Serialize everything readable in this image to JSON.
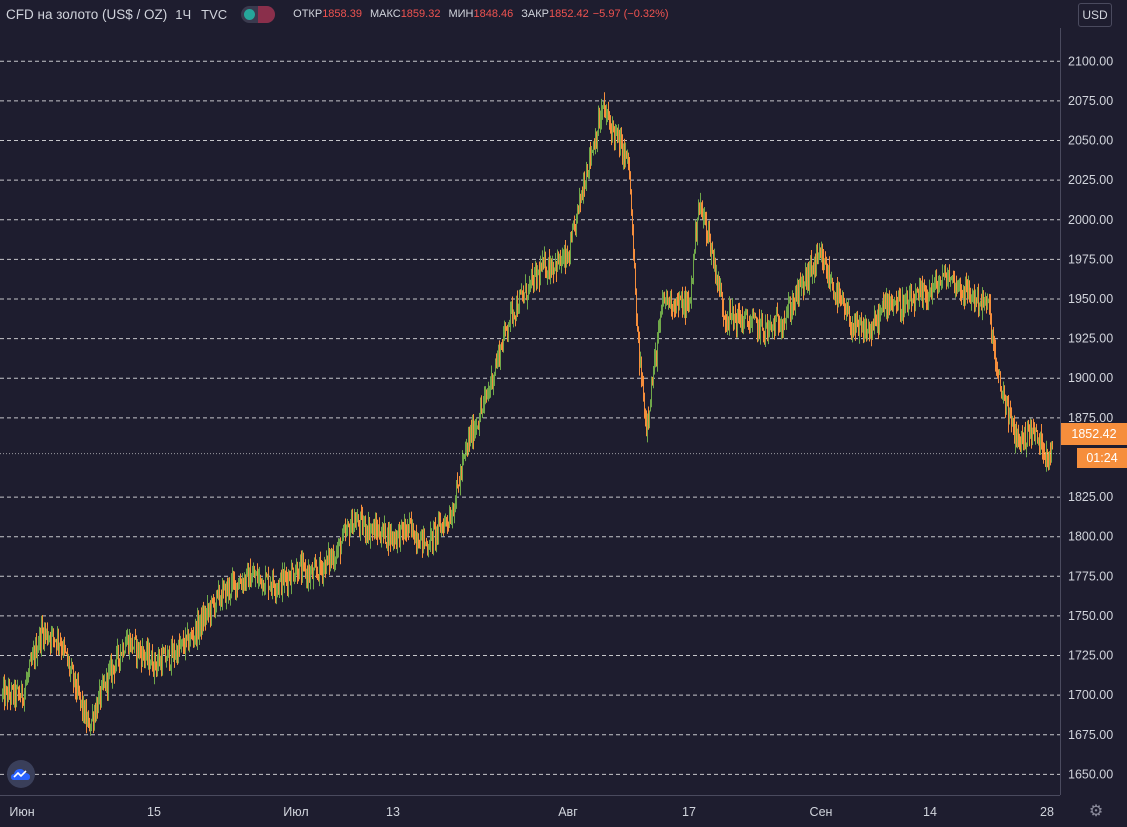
{
  "header": {
    "symbol_title": "CFD на золото (US$ / OZ)",
    "interval": "1Ч",
    "exchange": "TVC",
    "ohlc": {
      "open_label": "ОТКР",
      "open_value": "1858.39",
      "high_label": "МАКС",
      "high_value": "1859.32",
      "low_label": "МИН",
      "low_value": "1848.46",
      "close_label": "ЗАКР",
      "close_value": "1852.42",
      "change_value": "−5.97 (−0.32%)"
    }
  },
  "currency_button": "USD",
  "last_price_label": "1852.42",
  "countdown_label": "01:24",
  "colors": {
    "background": "#1e1d2f",
    "up": "#6fa74a",
    "down": "#f68e3c",
    "price_tag": "#f68e3c",
    "grid": "#ffffff"
  },
  "icons": {
    "logo": "tradingview-cloud-icon",
    "settings": "gear-icon"
  },
  "chart_data": {
    "type": "line",
    "title": "CFD на золото (US$ / OZ)",
    "xlabel": "",
    "ylabel": "",
    "x_tick_labels": [
      "Июн",
      "15",
      "Июл",
      "13",
      "Авг",
      "17",
      "Сен",
      "14",
      "28"
    ],
    "y_tick_labels": [
      "2100.00",
      "2075.00",
      "2050.00",
      "2025.00",
      "2000.00",
      "1975.00",
      "1950.00",
      "1925.00",
      "1900.00",
      "1875.00",
      "1850.00",
      "1825.00",
      "1800.00",
      "1775.00",
      "1750.00",
      "1725.00",
      "1700.00",
      "1675.00",
      "1650.00"
    ],
    "ylim": [
      1637,
      2121
    ],
    "grid": true,
    "last_price": 1852.42,
    "series": [
      {
        "x": [
          "2020-06-01",
          "2020-06-03",
          "2020-06-05",
          "2020-06-08",
          "2020-06-10",
          "2020-06-12",
          "2020-06-15",
          "2020-06-17",
          "2020-06-19",
          "2020-06-22",
          "2020-06-24",
          "2020-06-26",
          "2020-06-29",
          "2020-07-01",
          "2020-07-03",
          "2020-07-06",
          "2020-07-08",
          "2020-07-10",
          "2020-07-13",
          "2020-07-15",
          "2020-07-17",
          "2020-07-20",
          "2020-07-22",
          "2020-07-24",
          "2020-07-27",
          "2020-07-29",
          "2020-07-31",
          "2020-08-03",
          "2020-08-05",
          "2020-08-07",
          "2020-08-10",
          "2020-08-11",
          "2020-08-12",
          "2020-08-14",
          "2020-08-17",
          "2020-08-18",
          "2020-08-19",
          "2020-08-21",
          "2020-08-24",
          "2020-08-26",
          "2020-08-28",
          "2020-08-31",
          "2020-09-01",
          "2020-09-03",
          "2020-09-05",
          "2020-09-07",
          "2020-09-09",
          "2020-09-11",
          "2020-09-14",
          "2020-09-16",
          "2020-09-18",
          "2020-09-21",
          "2020-09-22",
          "2020-09-23",
          "2020-09-24",
          "2020-09-25",
          "2020-09-26",
          "2020-09-28"
        ],
        "values": [
          1700,
          1740,
          1735,
          1680,
          1710,
          1735,
          1720,
          1725,
          1735,
          1760,
          1770,
          1775,
          1770,
          1780,
          1775,
          1790,
          1810,
          1805,
          1800,
          1805,
          1795,
          1815,
          1860,
          1885,
          1940,
          1955,
          1970,
          1975,
          2030,
          2070,
          2035,
          1925,
          1870,
          1950,
          1945,
          2010,
          1995,
          1940,
          1935,
          1930,
          1940,
          1970,
          1975,
          1950,
          1930,
          1930,
          1950,
          1945,
          1955,
          1965,
          1955,
          1945,
          1900,
          1885,
          1865,
          1860,
          1868,
          1852.42
        ]
      }
    ]
  }
}
